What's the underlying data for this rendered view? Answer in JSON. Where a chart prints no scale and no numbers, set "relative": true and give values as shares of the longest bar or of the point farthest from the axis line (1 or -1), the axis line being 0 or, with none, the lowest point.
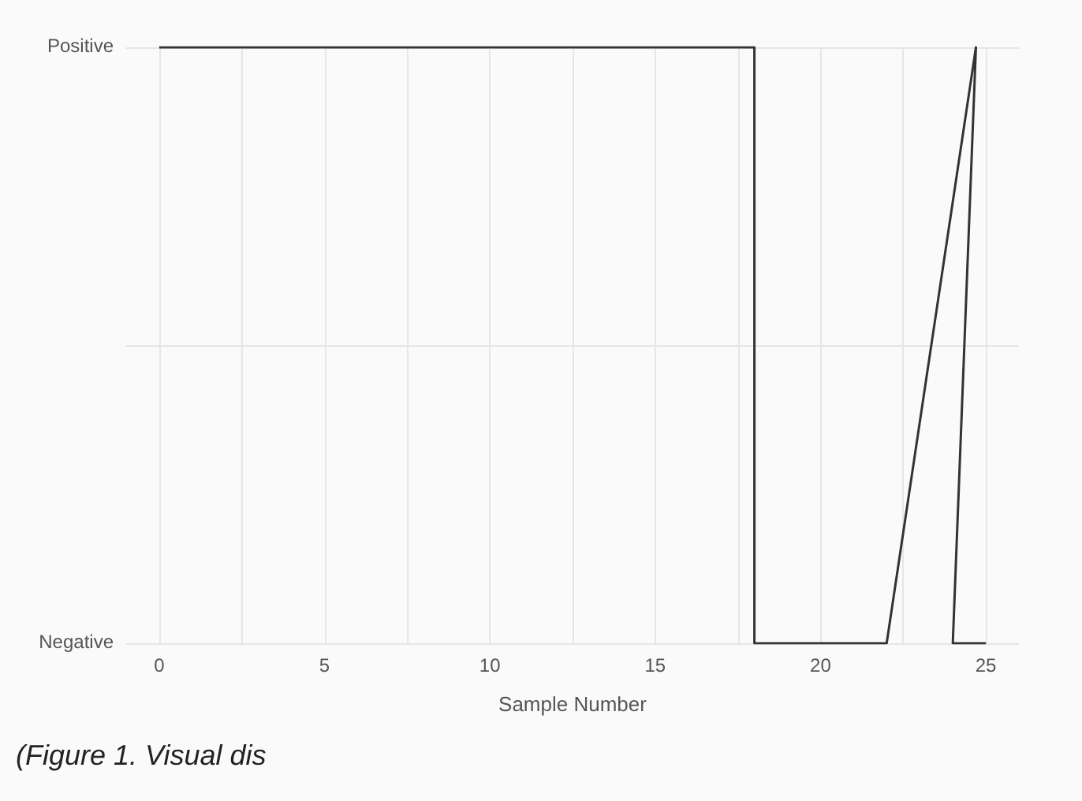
{
  "chart_data": {
    "type": "line",
    "xlabel": "Sample Number",
    "relative": true,
    "annotations": [
      "Positive",
      "Negative",
      "(Figure 1. Visual dis"
    ],
    "x": [
      0,
      18,
      18,
      22,
      24.7,
      24,
      25
    ],
    "series": [
      {
        "color": "#333333",
        "values": [
          1,
          1,
          0,
          0,
          1,
          0,
          0
        ]
      }
    ],
    "xlim": [
      -1,
      26
    ],
    "xticks": [
      0,
      {
        "value": 2.5,
        "label": null
      },
      5,
      {
        "value": 7.5,
        "label": null
      },
      10,
      {
        "value": 12.5,
        "label": null
      },
      15,
      {
        "value": 17.5,
        "label": null
      },
      20,
      {
        "value": 22.5,
        "label": null
      },
      25
    ],
    "grid": true,
    "marker": "none",
    "line_style": "solid"
  }
}
